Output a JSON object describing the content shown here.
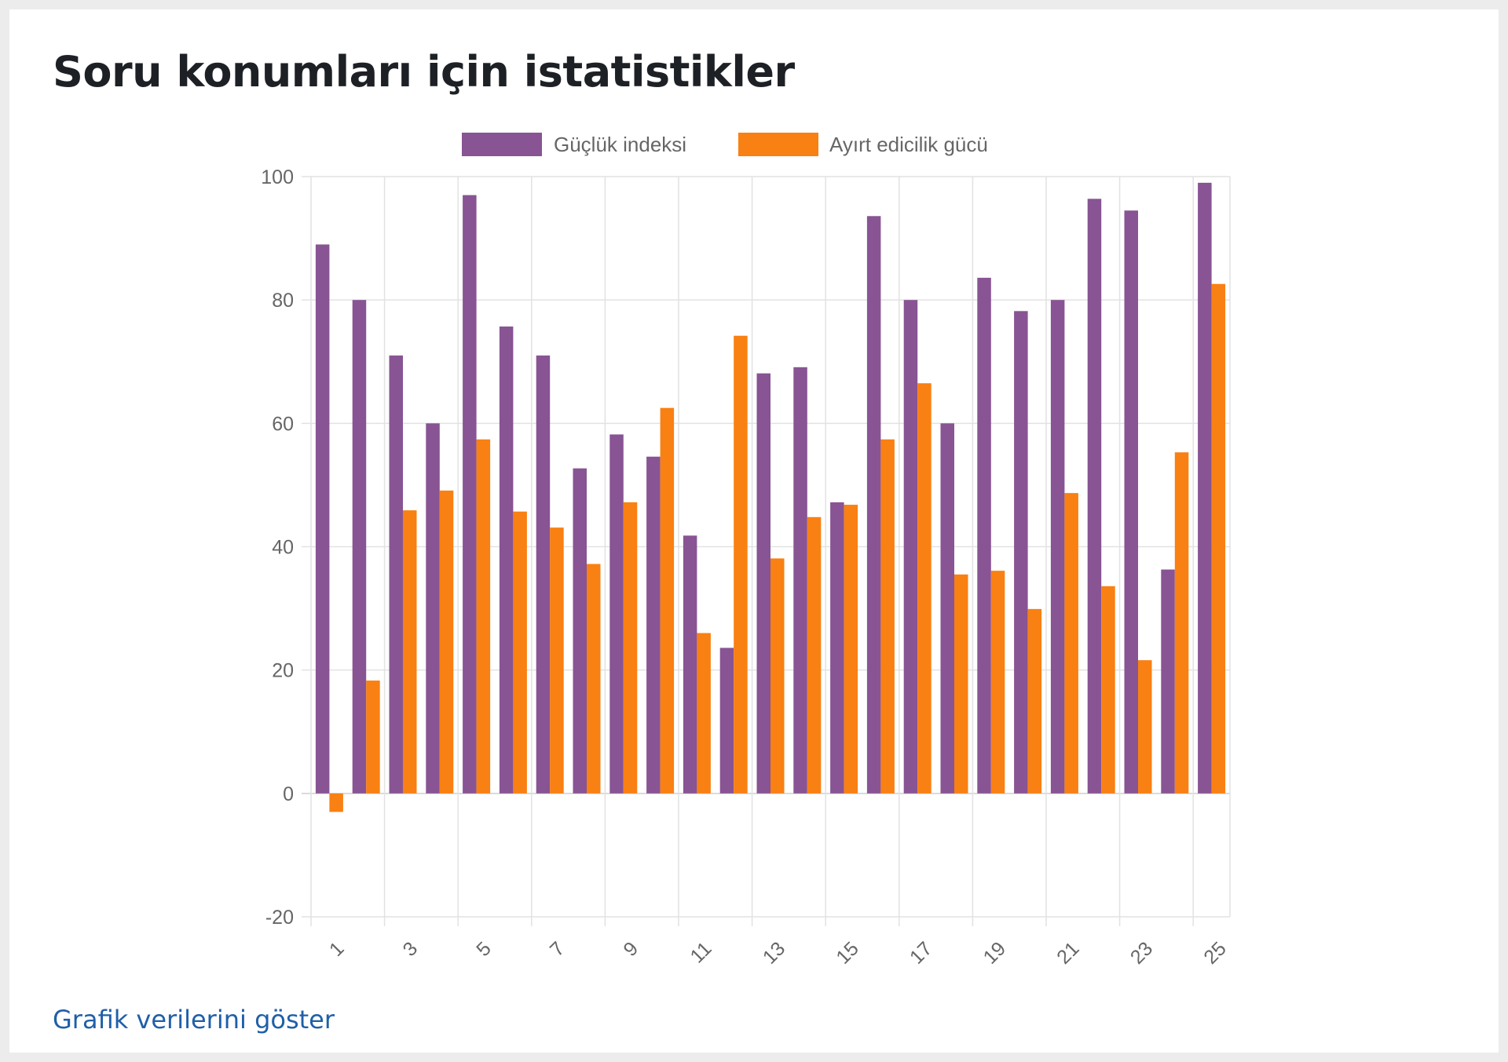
{
  "page": {
    "title": "Soru konumları için istatistikler",
    "show_data_link": "Grafik verilerini göster"
  },
  "colors": {
    "difficulty": "#885493",
    "discrimination": "#f98012",
    "grid": "#e2e2e2",
    "tick_text": "#666666",
    "link": "#1f5fa8"
  },
  "chart_data": {
    "type": "bar",
    "categories": [
      "1",
      "2",
      "3",
      "4",
      "5",
      "6",
      "7",
      "8",
      "9",
      "10",
      "11",
      "12",
      "13",
      "14",
      "15",
      "16",
      "17",
      "18",
      "19",
      "20",
      "21",
      "22",
      "23",
      "24",
      "25"
    ],
    "x_tick_labels": [
      "1",
      "3",
      "5",
      "7",
      "9",
      "11",
      "13",
      "15",
      "17",
      "19",
      "21",
      "23",
      "25"
    ],
    "series": [
      {
        "name": "Güçlük indeksi",
        "color": "#885493",
        "values": [
          89,
          80,
          71,
          60,
          97,
          75.7,
          71,
          52.7,
          58.2,
          54.6,
          41.8,
          23.6,
          68.1,
          69.1,
          47.2,
          93.6,
          80,
          60,
          83.6,
          78.2,
          80,
          96.4,
          94.5,
          36.3,
          99
        ]
      },
      {
        "name": "Ayırt edicilik gücü",
        "color": "#f98012",
        "values": [
          -3,
          18.3,
          45.9,
          49.1,
          57.4,
          45.7,
          43.1,
          37.2,
          47.2,
          62.5,
          26,
          74.2,
          38.1,
          44.8,
          46.8,
          57.4,
          66.5,
          35.5,
          36.1,
          29.9,
          48.7,
          33.6,
          21.6,
          55.3,
          82.6
        ]
      }
    ],
    "ylim": [
      -20,
      100
    ],
    "y_ticks": [
      -20,
      0,
      20,
      40,
      60,
      80,
      100
    ],
    "xlabel": "",
    "ylabel": "",
    "grid": true,
    "legend_position": "top"
  }
}
